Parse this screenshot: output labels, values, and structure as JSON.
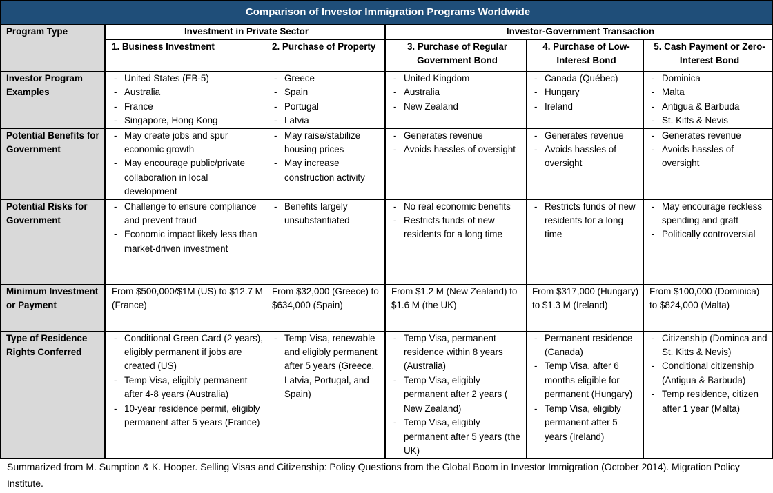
{
  "title": "Comparison of Investor Immigration Programs Worldwide",
  "program_type_label": "Program Type",
  "groups": [
    "Investment in Private Sector",
    "Investor-Government Transaction"
  ],
  "columns": [
    "1. Business Investment",
    "2. Purchase of Property",
    "3. Purchase of Regular Government Bond",
    "4. Purchase of Low-Interest Bond",
    "5. Cash Payment or Zero-Interest Bond"
  ],
  "rows": [
    {
      "label": "Investor Program Examples",
      "cells": [
        {
          "items": [
            "United States (EB-5)",
            "Australia",
            "France",
            "Singapore, Hong Kong"
          ]
        },
        {
          "items": [
            "Greece",
            "Spain",
            "Portugal",
            "Latvia"
          ]
        },
        {
          "items": [
            "United Kingdom",
            "Australia",
            "New Zealand"
          ]
        },
        {
          "items": [
            "Canada (Québec)",
            "Hungary",
            "Ireland"
          ]
        },
        {
          "items": [
            "Dominica",
            "Malta",
            "Antigua & Barbuda",
            "St. Kitts & Nevis"
          ]
        }
      ]
    },
    {
      "label": "Potential Benefits for Government",
      "cells": [
        {
          "items": [
            "May create jobs and spur economic growth",
            "May encourage public/private collaboration in local development"
          ]
        },
        {
          "items": [
            "May  raise/stabilize housing prices",
            "May increase construction activity"
          ]
        },
        {
          "items": [
            "Generates revenue",
            "Avoids hassles of oversight"
          ]
        },
        {
          "items": [
            "Generates revenue",
            "Avoids hassles of oversight"
          ]
        },
        {
          "items": [
            "Generates  revenue",
            "Avoids hassles of oversight"
          ]
        }
      ]
    },
    {
      "label": "Potential Risks for Government",
      "cells": [
        {
          "items": [
            "Challenge to ensure compliance and prevent fraud",
            "Economic impact likely less than market-driven investment"
          ]
        },
        {
          "items": [
            "Benefits largely unsubstantiated"
          ]
        },
        {
          "items": [
            "No real economic benefits",
            "Restricts funds of new residents for a long time"
          ]
        },
        {
          "items": [
            "Restricts funds of new residents for a long time"
          ]
        },
        {
          "items": [
            "May encourage reckless spending and graft",
            "Politically controversial"
          ]
        }
      ]
    },
    {
      "label": "Minimum Investment or Payment",
      "cells": [
        {
          "text": "From $500,000/$1M (US) to $12.7 M (France)"
        },
        {
          "text": "From $32,000 (Greece) to $634,000 (Spain)"
        },
        {
          "text": "From $1.2 M (New Zealand) to $1.6 M (the UK)"
        },
        {
          "text": "From $317,000 (Hungary) to $1.3 M (Ireland)"
        },
        {
          "text": "From $100,000 (Dominica) to $824,000 (Malta)"
        }
      ]
    },
    {
      "label": "Type of Residence Rights Conferred",
      "cells": [
        {
          "items": [
            "Conditional Green Card (2 years), eligibly permanent if jobs are created (US)",
            "Temp Visa, eligibly permanent after 4-8 years (Australia)",
            "10-year residence permit, eligibly permanent after 5 years (France)"
          ]
        },
        {
          "items": [
            "Temp Visa, renewable and eligibly permanent after 5 years (Greece, Latvia, Portugal, and Spain)"
          ]
        },
        {
          "items": [
            "Temp Visa, permanent residence within 8 years (Australia)",
            "Temp Visa, eligibly permanent after 2 years ( New Zealand)",
            "Temp Visa, eligibly permanent after 5 years (the UK)"
          ]
        },
        {
          "items": [
            "Permanent residence (Canada)",
            "Temp Visa, after 6 months eligible for permanent (Hungary)",
            "Temp Visa, eligibly permanent after 5 years (Ireland)"
          ]
        },
        {
          "items": [
            "Citizenship (Dominca and St. Kitts & Nevis)",
            "Conditional citizenship (Antigua & Barbuda)",
            "Temp residence, citizen after 1 year (Malta)"
          ]
        }
      ]
    }
  ],
  "footer": "Summarized from M. Sumption & K. Hooper. Selling Visas and Citizenship: Policy Questions from the Global Boom in Investor Immigration (October 2014). Migration Policy Institute."
}
